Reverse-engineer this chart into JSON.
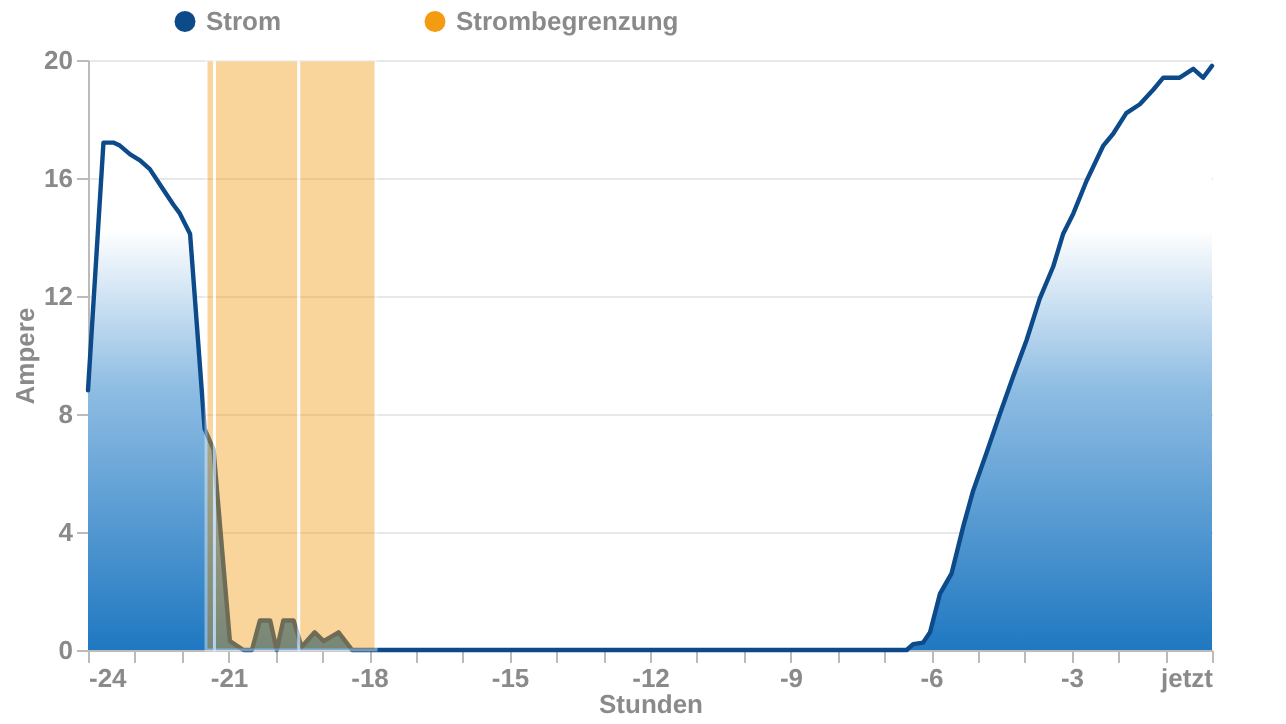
{
  "chart_data": {
    "type": "area",
    "xlabel": "Stunden",
    "ylabel": "Ampere",
    "xlim": [
      -24,
      0
    ],
    "ylim": [
      0,
      20
    ],
    "xticks": [
      -24,
      {
        "value": -23,
        "label": null
      },
      {
        "value": -22,
        "label": null
      },
      -21,
      {
        "value": -20,
        "label": null
      },
      {
        "value": -19,
        "label": null
      },
      -18,
      {
        "value": -17,
        "label": null
      },
      {
        "value": -16,
        "label": null
      },
      -15,
      {
        "value": -14,
        "label": null
      },
      {
        "value": -13,
        "label": null
      },
      -12,
      {
        "value": -11,
        "label": null
      },
      {
        "value": -10,
        "label": null
      },
      -9,
      {
        "value": -8,
        "label": null
      },
      {
        "value": -7,
        "label": null
      },
      -6,
      {
        "value": -5,
        "label": null
      },
      {
        "value": -4,
        "label": null
      },
      -3,
      {
        "value": -2,
        "label": null
      },
      {
        "value": -1,
        "label": null
      },
      {
        "value": 0,
        "label": "jetzt"
      }
    ],
    "yticks": [
      0,
      4,
      8,
      12,
      16,
      20
    ],
    "grid": "y",
    "legend": "top",
    "series": [
      {
        "name": "Strom",
        "color": "#0d4a8a",
        "x": [
          -24.0,
          -23.67,
          -23.46,
          -23.32,
          -23.1,
          -22.89,
          -22.68,
          -22.39,
          -22.18,
          -22.04,
          -21.82,
          -21.51,
          -21.32,
          -20.97,
          -20.68,
          -20.5,
          -20.33,
          -20.11,
          -19.97,
          -19.83,
          -19.61,
          -19.44,
          -19.16,
          -18.97,
          -18.65,
          -18.36,
          -12,
          -6.52,
          -6.38,
          -6.17,
          -6.02,
          -5.81,
          -5.56,
          -5.31,
          -5.1,
          -4.81,
          -4.53,
          -4.24,
          -3.96,
          -3.68,
          -3.39,
          -3.18,
          -2.96,
          -2.68,
          -2.32,
          -2.11,
          -1.83,
          -1.54,
          -1.25,
          -1.04,
          -0.69,
          -0.4,
          -0.19,
          0
        ],
        "values": [
          8.8,
          17.2,
          17.2,
          17.1,
          16.8,
          16.6,
          16.3,
          15.6,
          15.1,
          14.8,
          14.1,
          7.5,
          6.8,
          0.3,
          0,
          0,
          1.0,
          1.0,
          0,
          1.0,
          1.0,
          0.1,
          0.6,
          0.3,
          0.6,
          0,
          0,
          0,
          0.2,
          0.25,
          0.6,
          1.9,
          2.6,
          4.2,
          5.4,
          6.7,
          8.0,
          9.3,
          10.5,
          11.9,
          13.0,
          14.1,
          14.8,
          15.9,
          17.1,
          17.5,
          18.2,
          18.5,
          19.0,
          19.4,
          19.4,
          19.7,
          19.4,
          19.8
        ]
      }
    ],
    "bands": [
      {
        "axis": "x",
        "from": -21.48,
        "to": -21.3,
        "label": "Strombegrenzung",
        "color": "#f39c12"
      },
      {
        "axis": "x",
        "from": -21.3,
        "to": -19.5,
        "color": "#f39c12"
      },
      {
        "axis": "x",
        "from": -19.5,
        "to": -17.85,
        "color": "#f39c12"
      }
    ]
  }
}
